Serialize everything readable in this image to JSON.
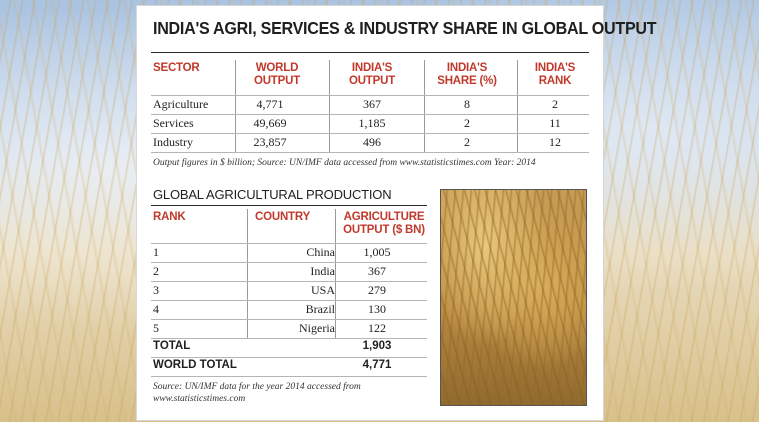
{
  "title": "INDIA'S AGRI, SERVICES & INDUSTRY SHARE IN GLOBAL OUTPUT",
  "table1": {
    "headers": {
      "sector": "SECTOR",
      "world_output_l1": "WORLD",
      "world_output_l2": "OUTPUT",
      "india_output_l1": "INDIA'S",
      "india_output_l2": "OUTPUT",
      "india_share_l1": "INDIA'S",
      "india_share_l2": "SHARE (%)",
      "india_rank_l1": "INDIA'S",
      "india_rank_l2": "RANK"
    },
    "rows": [
      {
        "sector": "Agriculture",
        "world": "4,771",
        "india": "367",
        "share": "8",
        "rank": "2"
      },
      {
        "sector": "Services",
        "world": "49,669",
        "india": "1,185",
        "share": "2",
        "rank": "11"
      },
      {
        "sector": "Industry",
        "world": "23,857",
        "india": "496",
        "share": "2",
        "rank": "12"
      }
    ],
    "note": "Output figures in $ billion; Source: UN/IMF data accessed from www.statisticstimes.com Year: 2014"
  },
  "table2": {
    "title": "GLOBAL AGRICULTURAL PRODUCTION",
    "headers": {
      "rank": "RANK",
      "country": "COUNTRY",
      "output_l1": "AGRICULTURE",
      "output_l2": "OUTPUT ($ BN)"
    },
    "rows": [
      {
        "rank": "1",
        "country": "China",
        "output": "1,005"
      },
      {
        "rank": "2",
        "country": "India",
        "output": "367"
      },
      {
        "rank": "3",
        "country": "USA",
        "output": "279"
      },
      {
        "rank": "4",
        "country": "Brazil",
        "output": "130"
      },
      {
        "rank": "5",
        "country": "Nigeria",
        "output": "122"
      }
    ],
    "total_label": "TOTAL",
    "total_value": "1,903",
    "world_total_label": "WORLD TOTAL",
    "world_total_value": "4,771",
    "note_l1": "Source: UN/IMF data for the year 2014 accessed from",
    "note_l2": "www.statisticstimes.com"
  },
  "colors": {
    "header_red": "#c0392b",
    "text": "#1f1f1f"
  }
}
